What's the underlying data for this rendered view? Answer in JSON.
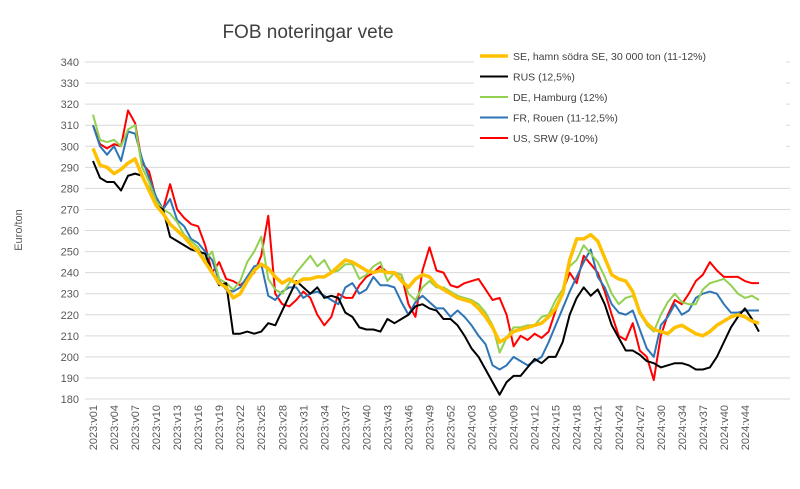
{
  "chart_data": {
    "type": "line",
    "title": "FOB noteringar vete",
    "y_label": "Euro/ton",
    "ylim": [
      180,
      340
    ],
    "yticks": [
      180,
      190,
      200,
      210,
      220,
      230,
      240,
      250,
      260,
      270,
      280,
      290,
      300,
      310,
      320,
      330,
      340
    ],
    "grid": true,
    "legend": "top-right",
    "categories": [
      "2023:v01",
      null,
      null,
      "2023:v04",
      null,
      null,
      "2023:v07",
      null,
      null,
      "2023:v10",
      null,
      null,
      "2023:v13",
      null,
      null,
      "2023:v16",
      null,
      null,
      "2023:v19",
      null,
      null,
      "2023:v22",
      null,
      null,
      "2023:v25",
      null,
      null,
      "2023:v28",
      null,
      null,
      "2023:v31",
      null,
      null,
      "2023:v34",
      null,
      null,
      "2023:v37",
      null,
      null,
      "2023:v40",
      null,
      null,
      "2023:v43",
      null,
      null,
      "2023:v46",
      null,
      null,
      "2023:v49",
      null,
      null,
      "2023:v52",
      null,
      null,
      "2024:v03",
      null,
      null,
      "2024:v06",
      null,
      null,
      "2024:v09",
      null,
      null,
      "2024:v12",
      null,
      null,
      "2024:v15",
      null,
      null,
      "2024:v18",
      null,
      null,
      "2024:v21",
      null,
      null,
      "2024:v24",
      null,
      null,
      "2024:v27",
      null,
      null,
      "2024:v30",
      null,
      null,
      "2024:v34",
      null,
      null,
      "2024:v37",
      null,
      null,
      "2024:v40",
      null,
      null,
      "2024:v44",
      null,
      null
    ],
    "series": [
      {
        "name": "SE, hamn södra SE, 30 000 ton (11-12%)",
        "color": "#ffc000",
        "width": 3.5,
        "values": [
          299,
          291,
          290,
          287,
          289,
          292,
          294,
          286,
          279,
          272,
          268,
          263,
          260,
          257,
          253,
          250,
          245,
          240,
          235,
          233,
          228,
          230,
          236,
          241,
          244,
          242,
          238,
          235,
          237,
          235,
          237,
          237,
          238,
          238,
          240,
          243,
          246,
          245,
          243,
          241,
          240,
          241,
          240,
          240,
          236,
          233,
          237,
          239,
          238,
          234,
          232,
          230,
          228,
          227,
          226,
          223,
          219,
          214,
          207,
          209,
          212,
          213,
          214,
          215,
          216,
          219,
          223,
          230,
          246,
          256,
          256,
          258,
          255,
          247,
          239,
          237,
          236,
          231,
          221,
          216,
          213,
          212,
          211,
          214,
          215,
          213,
          211,
          210,
          212,
          215,
          217,
          219,
          220,
          219,
          217,
          216
        ]
      },
      {
        "name": "RUS (12,5%)",
        "color": "#000000",
        "width": 2,
        "values": [
          293,
          285,
          283,
          283,
          279,
          286,
          287,
          286,
          280,
          272,
          270,
          257,
          255,
          253,
          251,
          250,
          249,
          240,
          234,
          235,
          211,
          211,
          212,
          211,
          212,
          216,
          215,
          222,
          229,
          236,
          233,
          230,
          233,
          228,
          229,
          228,
          221,
          219,
          214,
          213,
          213,
          212,
          218,
          216,
          218,
          220,
          224,
          225,
          223,
          222,
          218,
          218,
          215,
          210,
          204,
          200,
          194,
          188,
          182,
          188,
          191,
          191,
          195,
          199,
          197,
          200,
          200,
          207,
          220,
          228,
          233,
          229,
          232,
          225,
          215,
          209,
          203,
          203,
          201,
          198,
          197,
          195,
          196,
          197,
          197,
          196,
          194,
          194,
          195,
          200,
          207,
          214,
          219,
          223,
          218,
          212
        ]
      },
      {
        "name": "DE, Hamburg (12%)",
        "color": "#92d050",
        "width": 2,
        "values": [
          315,
          303,
          302,
          303,
          300,
          308,
          310,
          290,
          283,
          274,
          270,
          268,
          264,
          258,
          255,
          252,
          246,
          250,
          237,
          235,
          232,
          236,
          245,
          250,
          257,
          237,
          232,
          230,
          235,
          240,
          244,
          248,
          243,
          246,
          240,
          241,
          244,
          244,
          237,
          239,
          243,
          245,
          236,
          240,
          239,
          230,
          227,
          233,
          236,
          233,
          233,
          231,
          229,
          228,
          227,
          225,
          221,
          215,
          202,
          209,
          214,
          214,
          215,
          215,
          219,
          220,
          227,
          232,
          243,
          246,
          253,
          249,
          245,
          238,
          230,
          225,
          228,
          229,
          222,
          215,
          212,
          220,
          226,
          230,
          226,
          225,
          225,
          232,
          235,
          236,
          237,
          234,
          230,
          228,
          229,
          227
        ]
      },
      {
        "name": "FR, Rouen (11-12,5%)",
        "color": "#2e75b6",
        "width": 2,
        "values": [
          310,
          300,
          296,
          300,
          293,
          307,
          306,
          294,
          285,
          276,
          270,
          275,
          265,
          262,
          256,
          254,
          250,
          246,
          236,
          232,
          231,
          233,
          238,
          243,
          244,
          229,
          227,
          231,
          233,
          233,
          228,
          230,
          231,
          229,
          227,
          225,
          233,
          235,
          230,
          232,
          238,
          234,
          234,
          233,
          226,
          220,
          226,
          229,
          226,
          223,
          223,
          219,
          222,
          219,
          215,
          210,
          206,
          196,
          194,
          196,
          200,
          198,
          196,
          198,
          200,
          207,
          215,
          223,
          231,
          238,
          245,
          251,
          238,
          233,
          225,
          221,
          220,
          222,
          213,
          204,
          200,
          215,
          219,
          225,
          220,
          222,
          228,
          230,
          231,
          230,
          225,
          221,
          221,
          222,
          222,
          222
        ]
      },
      {
        "name": "US, SRW (9-10%)",
        "color": "#ff0000",
        "width": 2,
        "values": [
          310,
          301,
          299,
          301,
          300,
          317,
          311,
          292,
          288,
          275,
          270,
          282,
          270,
          266,
          263,
          262,
          253,
          240,
          245,
          237,
          236,
          234,
          237,
          240,
          248,
          267,
          230,
          225,
          224,
          227,
          231,
          228,
          220,
          215,
          219,
          230,
          228,
          228,
          234,
          238,
          240,
          243,
          240,
          240,
          239,
          225,
          219,
          241,
          252,
          241,
          240,
          234,
          233,
          235,
          236,
          237,
          232,
          227,
          228,
          220,
          205,
          210,
          208,
          211,
          209,
          212,
          222,
          231,
          240,
          235,
          248,
          244,
          240,
          231,
          220,
          210,
          208,
          216,
          203,
          200,
          189,
          210,
          220,
          227,
          225,
          230,
          236,
          239,
          245,
          241,
          238,
          238,
          238,
          236,
          235,
          235
        ]
      }
    ]
  }
}
